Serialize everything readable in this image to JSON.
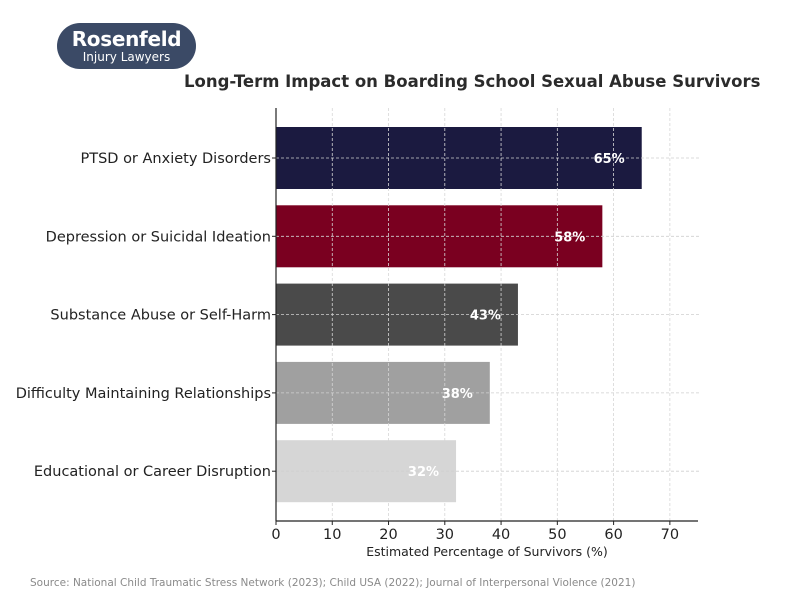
{
  "logo": {
    "brand": "Rosenfeld",
    "subtitle": "Injury Lawyers"
  },
  "source": "Source: National Child Traumatic Stress Network (2023); Child USA (2022); Journal of Interpersonal Violence (2021)",
  "chart_data": {
    "type": "bar",
    "orientation": "horizontal",
    "title": "Long-Term Impact on Boarding School Sexual Abuse Survivors",
    "xlabel": "Estimated Percentage of Survivors (%)",
    "ylabel": "",
    "categories": [
      "PTSD or Anxiety Disorders",
      "Depression or Suicidal Ideation",
      "Substance Abuse or Self-Harm",
      "Difficulty Maintaining Relationships",
      "Educational or Career Disruption"
    ],
    "values": [
      65,
      58,
      43,
      38,
      32
    ],
    "data_labels": [
      "65%",
      "58%",
      "43%",
      "38%",
      "32%"
    ],
    "colors": [
      "#1b1a40",
      "#7a0020",
      "#4a4a4a",
      "#a0a0a0",
      "#d6d6d6"
    ],
    "xlim": [
      0,
      75
    ],
    "xticks": [
      0,
      10,
      20,
      30,
      40,
      50,
      60,
      70
    ],
    "xtick_labels": [
      "0",
      "10",
      "20",
      "30",
      "40",
      "50",
      "60",
      "70"
    ],
    "grid": true
  }
}
